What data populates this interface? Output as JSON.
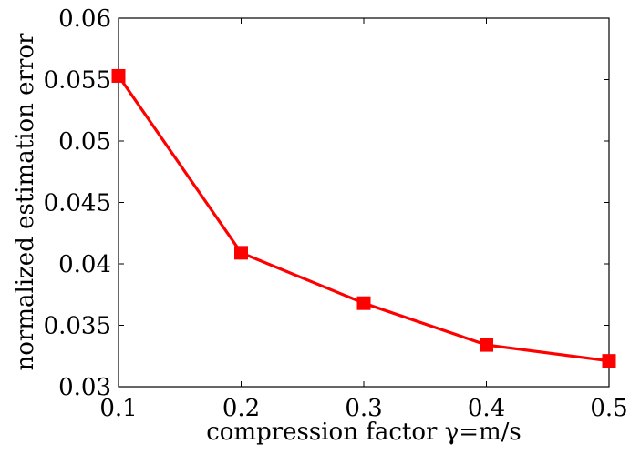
{
  "chart_data": {
    "type": "line",
    "title": "",
    "xlabel": "compression factor γ=m/s",
    "ylabel": "normalized estimation error",
    "xlim": [
      0.1,
      0.5
    ],
    "ylim": [
      0.03,
      0.06
    ],
    "xticks": [
      "0.1",
      "0.2",
      "0.3",
      "0.4",
      "0.5"
    ],
    "yticks": [
      "0.03",
      "0.035",
      "0.04",
      "0.045",
      "0.05",
      "0.055",
      "0.06"
    ],
    "grid": false,
    "series": [
      {
        "color": "#ff0000",
        "marker": "square",
        "x": [
          0.1,
          0.2,
          0.3,
          0.4,
          0.5
        ],
        "y": [
          0.0553,
          0.0409,
          0.0368,
          0.0334,
          0.0321
        ]
      }
    ]
  }
}
